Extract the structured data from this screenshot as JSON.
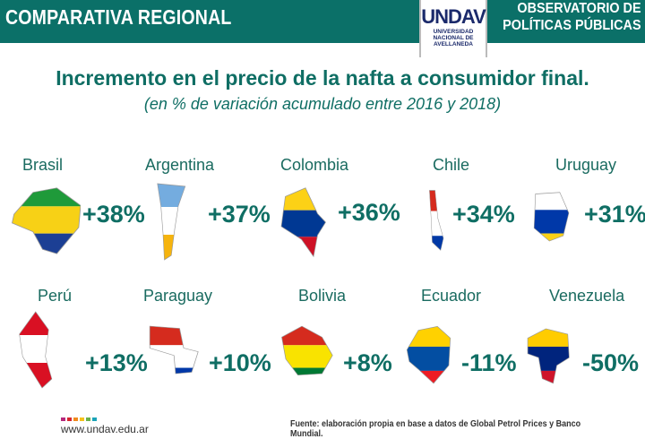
{
  "header": {
    "section": "COMPARATIVA REGIONAL",
    "logo_text": "UNDAV",
    "logo_subtitle": [
      "UNIVERSIDAD",
      "NACIONAL DE",
      "AVELLANEDA"
    ],
    "observatory": [
      "OBSERVATORIO DE",
      "POLÍTICAS PÚBLICAS"
    ]
  },
  "title": "Incremento en el precio de la nafta a consumidor final.",
  "subtitle": "(en % de variación acumulado entre 2016 y 2018)",
  "countries": [
    {
      "name": "Brasil",
      "value": "+38%",
      "colors": [
        "#1f9a3a",
        "#f7d116",
        "#1c3f94"
      ]
    },
    {
      "name": "Argentina",
      "value": "+37%",
      "colors": [
        "#74acdf",
        "#ffffff",
        "#f6b40e"
      ]
    },
    {
      "name": "Colombia",
      "value": "+36%",
      "colors": [
        "#fcd116",
        "#003893",
        "#ce1126"
      ]
    },
    {
      "name": "Chile",
      "value": "+34%",
      "colors": [
        "#d52b1e",
        "#ffffff",
        "#0039a6"
      ]
    },
    {
      "name": "Uruguay",
      "value": "+31%",
      "colors": [
        "#ffffff",
        "#0038a8",
        "#fcd116"
      ]
    },
    {
      "name": "Perú",
      "value": "+13%",
      "colors": [
        "#d91023",
        "#ffffff",
        "#d91023"
      ]
    },
    {
      "name": "Paraguay",
      "value": "+10%",
      "colors": [
        "#d52b1e",
        "#ffffff",
        "#0038a8"
      ]
    },
    {
      "name": "Bolivia",
      "value": "+8%",
      "colors": [
        "#d52b1e",
        "#f9e300",
        "#007934"
      ]
    },
    {
      "name": "Ecuador",
      "value": "-11%",
      "colors": [
        "#ffd100",
        "#034ea2",
        "#ed1c24"
      ]
    },
    {
      "name": "Venezuela",
      "value": "-50%",
      "colors": [
        "#ffcc00",
        "#00247d",
        "#cf142b"
      ]
    }
  ],
  "footer": {
    "url": "www.undav.edu.ar",
    "source": "Fuente: elaboración propia en base a datos de Global Petrol Prices y Banco Mundial.",
    "dot_colors": [
      "#b5287b",
      "#d6262e",
      "#f08a1d",
      "#f5c21b",
      "#6ab04c",
      "#1aa3b8"
    ]
  }
}
